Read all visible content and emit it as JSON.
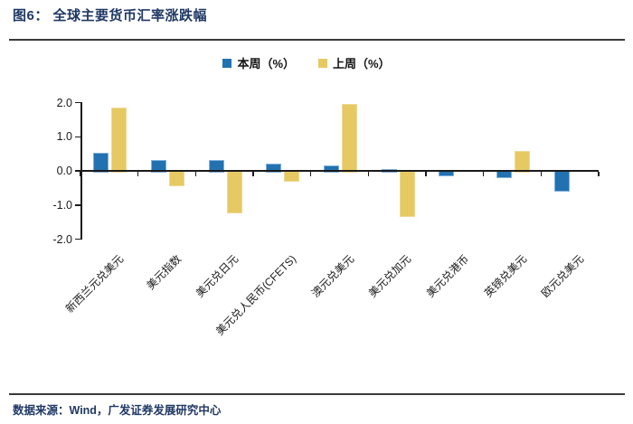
{
  "title": "图6：  全球主要货币汇率涨跌幅",
  "footer": "数据来源：Wind，广发证券发展研究中心",
  "colors": {
    "title_text": "#1f3864",
    "footer_text": "#1f3864",
    "axis": "#1a1a1a",
    "this_week": "#2272b2",
    "this_week_border": "#7fb0da",
    "last_week": "#e6c963",
    "last_week_border": "#eed993"
  },
  "chart_data": {
    "type": "bar",
    "title": "全球主要货币汇率涨跌幅",
    "categories": [
      "新西兰元兑美元",
      "美元指数",
      "美元兑日元",
      "美元兑人民币(CFETS)",
      "澳元兑美元",
      "美元兑加元",
      "美元兑港币",
      "英镑兑美元",
      "欧元兑美元"
    ],
    "series": [
      {
        "name": "本周（%）",
        "color_key": "this_week",
        "border_key": "this_week_border",
        "values": [
          0.52,
          0.33,
          0.32,
          0.22,
          0.15,
          0.04,
          -0.1,
          -0.15,
          -0.56
        ]
      },
      {
        "name": "上周（%）",
        "color_key": "last_week",
        "border_key": "last_week_border",
        "values": [
          1.86,
          -0.4,
          -1.18,
          -0.27,
          1.96,
          -1.31,
          0.0,
          0.57,
          0.0
        ]
      }
    ],
    "xlabel": "",
    "ylabel": "",
    "ylim": [
      -2.0,
      2.0
    ],
    "yticks": [
      {
        "v": 2,
        "label": "2.0"
      },
      {
        "v": 1,
        "label": "1.0"
      },
      {
        "v": 0,
        "label": "0.0"
      },
      {
        "v": -1,
        "label": "-1.0"
      },
      {
        "v": -2,
        "label": "-2.0"
      }
    ],
    "grid": false,
    "legend_position": "top-center"
  }
}
